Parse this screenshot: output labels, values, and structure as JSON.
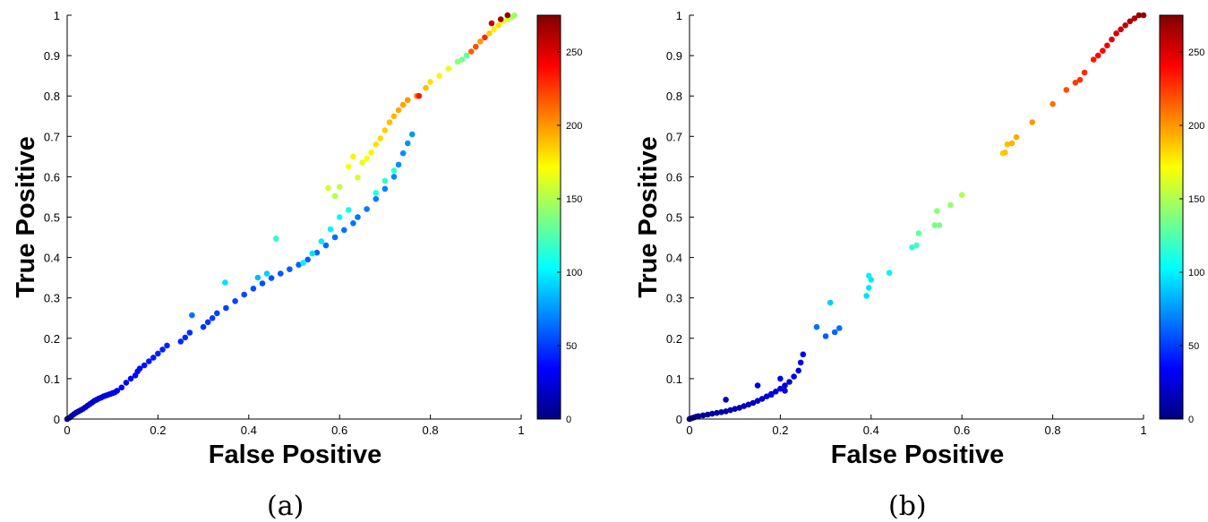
{
  "captions": [
    "(a)",
    "(b)"
  ],
  "chart_data": [
    {
      "type": "scatter",
      "xlabel": "False Positive",
      "ylabel": "True Positive",
      "xlim": [
        0,
        1
      ],
      "ylim": [
        0,
        1
      ],
      "xticks": [
        "0",
        "0.2",
        "0.4",
        "0.6",
        "0.8",
        "1"
      ],
      "yticks": [
        "0",
        "0.1",
        "0.2",
        "0.3",
        "0.4",
        "0.5",
        "0.6",
        "0.7",
        "0.8",
        "0.9",
        "1"
      ],
      "colorbar": {
        "colormap": "jet",
        "range": [
          0,
          275
        ],
        "ticks": [
          "0",
          "50",
          "100",
          "150",
          "200",
          "250"
        ]
      },
      "grid": false,
      "points": [
        [
          0.0,
          0.0,
          5
        ],
        [
          0.005,
          0.003,
          8
        ],
        [
          0.01,
          0.008,
          10
        ],
        [
          0.015,
          0.012,
          12
        ],
        [
          0.02,
          0.016,
          14
        ],
        [
          0.025,
          0.019,
          15
        ],
        [
          0.03,
          0.022,
          16
        ],
        [
          0.035,
          0.025,
          17
        ],
        [
          0.04,
          0.029,
          18
        ],
        [
          0.045,
          0.033,
          19
        ],
        [
          0.05,
          0.037,
          20
        ],
        [
          0.055,
          0.041,
          21
        ],
        [
          0.06,
          0.045,
          22
        ],
        [
          0.065,
          0.048,
          23
        ],
        [
          0.07,
          0.051,
          24
        ],
        [
          0.075,
          0.053,
          25
        ],
        [
          0.08,
          0.056,
          26
        ],
        [
          0.085,
          0.058,
          27
        ],
        [
          0.09,
          0.06,
          28
        ],
        [
          0.095,
          0.062,
          29
        ],
        [
          0.1,
          0.064,
          30
        ],
        [
          0.105,
          0.066,
          31
        ],
        [
          0.11,
          0.07,
          32
        ],
        [
          0.12,
          0.078,
          33
        ],
        [
          0.13,
          0.09,
          34
        ],
        [
          0.14,
          0.1,
          35
        ],
        [
          0.15,
          0.108,
          36
        ],
        [
          0.155,
          0.118,
          37
        ],
        [
          0.16,
          0.125,
          38
        ],
        [
          0.17,
          0.133,
          39
        ],
        [
          0.18,
          0.143,
          40
        ],
        [
          0.19,
          0.152,
          41
        ],
        [
          0.2,
          0.162,
          42
        ],
        [
          0.21,
          0.172,
          43
        ],
        [
          0.22,
          0.182,
          44
        ],
        [
          0.25,
          0.192,
          45
        ],
        [
          0.26,
          0.202,
          46
        ],
        [
          0.27,
          0.214,
          47
        ],
        [
          0.3,
          0.228,
          48
        ],
        [
          0.31,
          0.24,
          49
        ],
        [
          0.32,
          0.25,
          50
        ],
        [
          0.33,
          0.262,
          51
        ],
        [
          0.35,
          0.275,
          52
        ],
        [
          0.37,
          0.292,
          53
        ],
        [
          0.39,
          0.308,
          54
        ],
        [
          0.41,
          0.323,
          55
        ],
        [
          0.43,
          0.336,
          56
        ],
        [
          0.45,
          0.349,
          57
        ],
        [
          0.47,
          0.36,
          58
        ],
        [
          0.49,
          0.371,
          59
        ],
        [
          0.51,
          0.382,
          60
        ],
        [
          0.53,
          0.395,
          61
        ],
        [
          0.55,
          0.412,
          62
        ],
        [
          0.57,
          0.43,
          63
        ],
        [
          0.59,
          0.45,
          64
        ],
        [
          0.61,
          0.468,
          65
        ],
        [
          0.63,
          0.485,
          66
        ],
        [
          0.64,
          0.5,
          67
        ],
        [
          0.66,
          0.52,
          68
        ],
        [
          0.68,
          0.545,
          69
        ],
        [
          0.7,
          0.57,
          70
        ],
        [
          0.72,
          0.6,
          71
        ],
        [
          0.73,
          0.63,
          72
        ],
        [
          0.74,
          0.658,
          73
        ],
        [
          0.75,
          0.683,
          74
        ],
        [
          0.76,
          0.705,
          75
        ],
        [
          0.348,
          0.338,
          95
        ],
        [
          0.275,
          0.257,
          65
        ],
        [
          0.42,
          0.35,
          85
        ],
        [
          0.44,
          0.36,
          90
        ],
        [
          0.46,
          0.447,
          115
        ],
        [
          0.52,
          0.387,
          100
        ],
        [
          0.54,
          0.41,
          95
        ],
        [
          0.56,
          0.44,
          98
        ],
        [
          0.58,
          0.47,
          100
        ],
        [
          0.6,
          0.5,
          102
        ],
        [
          0.62,
          0.518,
          108
        ],
        [
          0.68,
          0.56,
          112
        ],
        [
          0.7,
          0.59,
          114
        ],
        [
          0.72,
          0.615,
          115
        ],
        [
          0.575,
          0.572,
          160
        ],
        [
          0.59,
          0.552,
          150
        ],
        [
          0.6,
          0.575,
          155
        ],
        [
          0.62,
          0.625,
          170
        ],
        [
          0.63,
          0.65,
          175
        ],
        [
          0.64,
          0.598,
          160
        ],
        [
          0.65,
          0.635,
          165
        ],
        [
          0.66,
          0.645,
          170
        ],
        [
          0.67,
          0.66,
          175
        ],
        [
          0.68,
          0.68,
          180
        ],
        [
          0.69,
          0.695,
          182
        ],
        [
          0.7,
          0.715,
          185
        ],
        [
          0.71,
          0.735,
          190
        ],
        [
          0.72,
          0.75,
          192
        ],
        [
          0.73,
          0.765,
          195
        ],
        [
          0.74,
          0.778,
          197
        ],
        [
          0.75,
          0.79,
          200
        ],
        [
          0.77,
          0.8,
          205
        ],
        [
          0.775,
          0.8,
          235
        ],
        [
          0.79,
          0.82,
          190
        ],
        [
          0.8,
          0.835,
          180
        ],
        [
          0.82,
          0.85,
          175
        ],
        [
          0.84,
          0.868,
          165
        ],
        [
          0.86,
          0.885,
          140
        ],
        [
          0.87,
          0.89,
          135
        ],
        [
          0.88,
          0.9,
          130
        ],
        [
          0.89,
          0.91,
          215
        ],
        [
          0.9,
          0.922,
          220
        ],
        [
          0.91,
          0.935,
          200
        ],
        [
          0.92,
          0.945,
          230
        ],
        [
          0.93,
          0.955,
          185
        ],
        [
          0.94,
          0.965,
          175
        ],
        [
          0.95,
          0.975,
          180
        ],
        [
          0.96,
          0.985,
          170
        ],
        [
          0.97,
          0.99,
          160
        ],
        [
          0.98,
          0.995,
          150
        ],
        [
          0.935,
          0.98,
          255
        ],
        [
          0.955,
          0.99,
          265
        ],
        [
          0.97,
          1.0,
          270
        ],
        [
          0.985,
          1.0,
          145
        ]
      ]
    },
    {
      "type": "scatter",
      "xlabel": "False Positive",
      "ylabel": "True Positive",
      "xlim": [
        0,
        1
      ],
      "ylim": [
        0,
        1
      ],
      "xticks": [
        "0",
        "0.2",
        "0.4",
        "0.6",
        "0.8",
        "1"
      ],
      "yticks": [
        "0",
        "0.1",
        "0.2",
        "0.3",
        "0.4",
        "0.5",
        "0.6",
        "0.7",
        "0.8",
        "0.9",
        "1"
      ],
      "colorbar": {
        "colormap": "jet",
        "range": [
          0,
          275
        ],
        "ticks": [
          "0",
          "50",
          "100",
          "150",
          "200",
          "250"
        ]
      },
      "grid": false,
      "points": [
        [
          0.0,
          0.0,
          2
        ],
        [
          0.005,
          0.002,
          3
        ],
        [
          0.01,
          0.004,
          4
        ],
        [
          0.015,
          0.006,
          5
        ],
        [
          0.02,
          0.007,
          6
        ],
        [
          0.03,
          0.009,
          7
        ],
        [
          0.04,
          0.011,
          8
        ],
        [
          0.05,
          0.013,
          9
        ],
        [
          0.06,
          0.015,
          10
        ],
        [
          0.07,
          0.017,
          11
        ],
        [
          0.08,
          0.019,
          12
        ],
        [
          0.09,
          0.022,
          13
        ],
        [
          0.1,
          0.025,
          14
        ],
        [
          0.11,
          0.028,
          15
        ],
        [
          0.12,
          0.032,
          16
        ],
        [
          0.13,
          0.036,
          17
        ],
        [
          0.14,
          0.04,
          18
        ],
        [
          0.15,
          0.045,
          19
        ],
        [
          0.16,
          0.05,
          20
        ],
        [
          0.17,
          0.056,
          21
        ],
        [
          0.18,
          0.062,
          22
        ],
        [
          0.19,
          0.068,
          23
        ],
        [
          0.2,
          0.075,
          24
        ],
        [
          0.21,
          0.083,
          25
        ],
        [
          0.22,
          0.092,
          26
        ],
        [
          0.23,
          0.105,
          27
        ],
        [
          0.24,
          0.12,
          28
        ],
        [
          0.245,
          0.14,
          29
        ],
        [
          0.25,
          0.16,
          30
        ],
        [
          0.08,
          0.048,
          20
        ],
        [
          0.15,
          0.083,
          25
        ],
        [
          0.18,
          0.06,
          30
        ],
        [
          0.2,
          0.1,
          33
        ],
        [
          0.21,
          0.07,
          27
        ],
        [
          0.28,
          0.228,
          65
        ],
        [
          0.3,
          0.205,
          60
        ],
        [
          0.31,
          0.288,
          90
        ],
        [
          0.32,
          0.215,
          62
        ],
        [
          0.33,
          0.225,
          64
        ],
        [
          0.39,
          0.305,
          95
        ],
        [
          0.395,
          0.355,
          100
        ],
        [
          0.4,
          0.345,
          98
        ],
        [
          0.395,
          0.325,
          96
        ],
        [
          0.44,
          0.362,
          100
        ],
        [
          0.49,
          0.425,
          115
        ],
        [
          0.5,
          0.43,
          120
        ],
        [
          0.505,
          0.46,
          130
        ],
        [
          0.54,
          0.48,
          135
        ],
        [
          0.545,
          0.515,
          140
        ],
        [
          0.55,
          0.48,
          136
        ],
        [
          0.575,
          0.53,
          142
        ],
        [
          0.6,
          0.555,
          150
        ],
        [
          0.69,
          0.658,
          185
        ],
        [
          0.695,
          0.66,
          188
        ],
        [
          0.7,
          0.68,
          190
        ],
        [
          0.71,
          0.683,
          193
        ],
        [
          0.72,
          0.698,
          195
        ],
        [
          0.755,
          0.735,
          200
        ],
        [
          0.8,
          0.78,
          210
        ],
        [
          0.83,
          0.815,
          220
        ],
        [
          0.85,
          0.833,
          225
        ],
        [
          0.86,
          0.84,
          228
        ],
        [
          0.87,
          0.858,
          230
        ],
        [
          0.89,
          0.89,
          235
        ],
        [
          0.9,
          0.9,
          240
        ],
        [
          0.91,
          0.912,
          242
        ],
        [
          0.92,
          0.925,
          245
        ],
        [
          0.93,
          0.94,
          248
        ],
        [
          0.94,
          0.955,
          252
        ],
        [
          0.95,
          0.965,
          255
        ],
        [
          0.96,
          0.975,
          258
        ],
        [
          0.97,
          0.985,
          262
        ],
        [
          0.98,
          0.992,
          265
        ],
        [
          0.99,
          1.0,
          268
        ],
        [
          1.0,
          1.0,
          270
        ]
      ]
    }
  ]
}
